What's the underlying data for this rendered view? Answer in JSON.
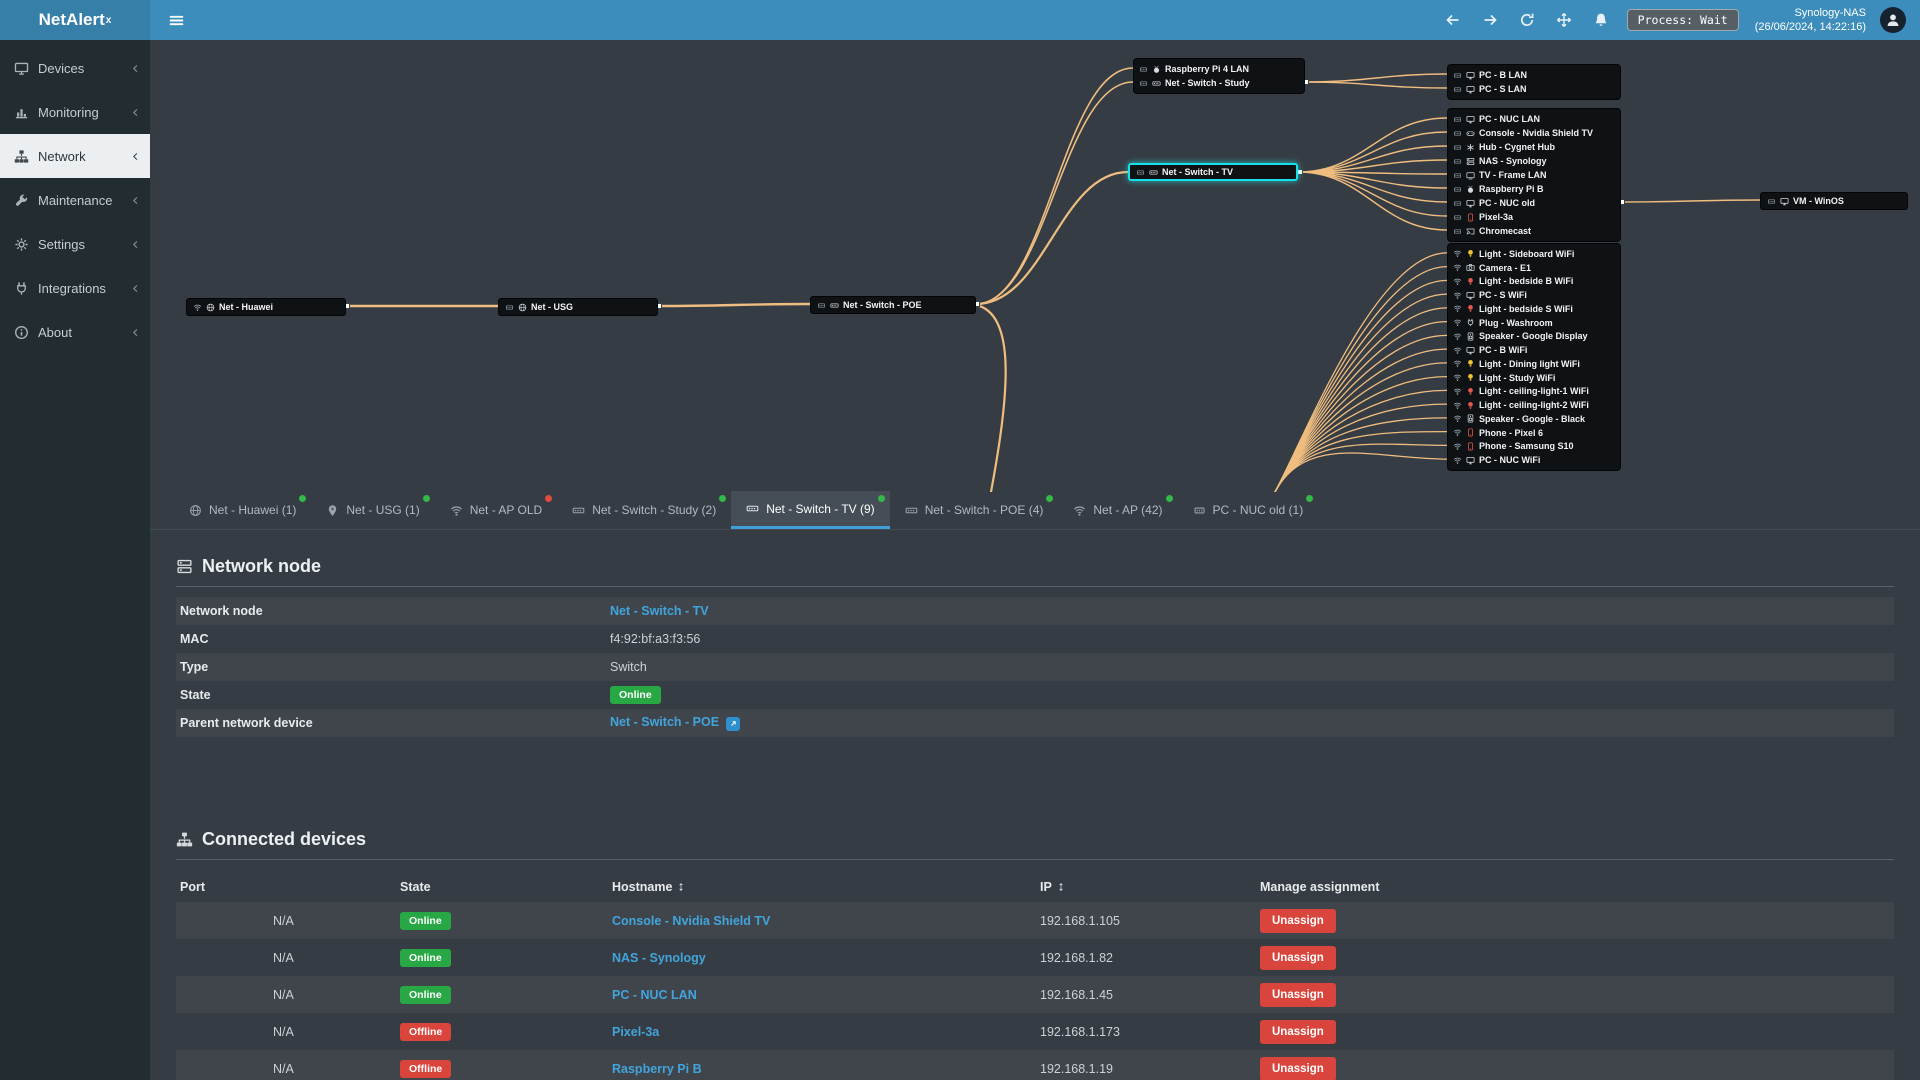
{
  "app": {
    "brand": "NetAlert",
    "brand_sup": "x"
  },
  "header": {
    "process_badge": "Process: Wait",
    "host_name": "Synology-NAS",
    "host_time": "(26/06/2024, 14:22:16)",
    "nav_icons": [
      "arrow-left",
      "arrow-right",
      "refresh",
      "move",
      "bell"
    ]
  },
  "sidebar": {
    "items": [
      {
        "label": "Devices",
        "icon": "monitor",
        "active": false
      },
      {
        "label": "Monitoring",
        "icon": "chart",
        "active": false
      },
      {
        "label": "Network",
        "icon": "sitemap",
        "active": true
      },
      {
        "label": "Maintenance",
        "icon": "wrench",
        "active": false
      },
      {
        "label": "Settings",
        "icon": "gear",
        "active": false
      },
      {
        "label": "Integrations",
        "icon": "plug",
        "active": false
      },
      {
        "label": "About",
        "icon": "info",
        "active": false
      }
    ]
  },
  "tree": {
    "nodes": [
      {
        "id": "huawei",
        "label": "Net - Huawei",
        "conn": "wifi",
        "icon": "globe",
        "selected": false
      },
      {
        "id": "usg",
        "label": "Net - USG",
        "conn": "eth",
        "icon": "globe",
        "selected": false
      },
      {
        "id": "poe",
        "label": "Net - Switch - POE",
        "conn": "eth",
        "icon": "switch",
        "selected": false
      },
      {
        "id": "tv",
        "label": "Net - Switch - TV",
        "conn": "eth",
        "icon": "switch",
        "selected": true
      },
      {
        "id": "vm",
        "label": "VM - WinOS",
        "conn": "eth",
        "icon": "monitor",
        "selected": false
      }
    ],
    "groups": [
      {
        "id": "study",
        "rows": [
          {
            "label": "Raspberry Pi 4 LAN",
            "conn": "eth",
            "icon": "berry"
          },
          {
            "label": "Net - Switch - Study",
            "conn": "eth",
            "icon": "switch"
          }
        ]
      },
      {
        "id": "grp1",
        "rows": [
          {
            "label": "PC - B LAN",
            "conn": "eth",
            "icon": "monitor"
          },
          {
            "label": "PC - S LAN",
            "conn": "eth",
            "icon": "monitor"
          }
        ]
      },
      {
        "id": "grp2",
        "rows": [
          {
            "label": "PC - NUC LAN",
            "conn": "eth",
            "icon": "monitor"
          },
          {
            "label": "Console - Nvidia Shield TV",
            "conn": "eth",
            "icon": "gamepad"
          },
          {
            "label": "Hub - Cygnet Hub",
            "conn": "eth",
            "icon": "hub"
          },
          {
            "label": "NAS - Synology",
            "conn": "eth",
            "icon": "server"
          },
          {
            "label": "TV - Frame LAN",
            "conn": "eth",
            "icon": "tv"
          },
          {
            "label": "Raspberry Pi B",
            "conn": "eth",
            "icon": "berry"
          },
          {
            "label": "PC - NUC old",
            "conn": "eth",
            "icon": "monitor"
          },
          {
            "label": "Pixel-3a",
            "conn": "eth",
            "icon": "phone",
            "color": "red"
          },
          {
            "label": "Chromecast",
            "conn": "eth",
            "icon": "cast"
          }
        ]
      },
      {
        "id": "grp3",
        "rows": [
          {
            "label": "Light - Sideboard WiFi",
            "conn": "wifi",
            "icon": "bulb",
            "color": "yellow"
          },
          {
            "label": "Camera - E1",
            "conn": "wifi",
            "icon": "camera"
          },
          {
            "label": "Light - bedside B WiFi",
            "conn": "wifi",
            "icon": "bulb",
            "color": "red"
          },
          {
            "label": "PC - S WiFi",
            "conn": "wifi",
            "icon": "monitor"
          },
          {
            "label": "Light - bedside S WiFi",
            "conn": "wifi",
            "icon": "bulb",
            "color": "red"
          },
          {
            "label": "Plug - Washroom",
            "conn": "wifi",
            "icon": "plug"
          },
          {
            "label": "Speaker - Google Display",
            "conn": "wifi",
            "icon": "speaker"
          },
          {
            "label": "PC - B WiFi",
            "conn": "wifi",
            "icon": "monitor"
          },
          {
            "label": "Light - Dining light WiFi",
            "conn": "wifi",
            "icon": "bulb",
            "color": "yellow"
          },
          {
            "label": "Light - Study WiFi",
            "conn": "wifi",
            "icon": "bulb",
            "color": "yellow"
          },
          {
            "label": "Light - ceiling-light-1 WiFi",
            "conn": "wifi",
            "icon": "bulb",
            "color": "red"
          },
          {
            "label": "Light - ceiling-light-2 WiFi",
            "conn": "wifi",
            "icon": "bulb",
            "color": "red"
          },
          {
            "label": "Speaker - Google - Black",
            "conn": "wifi",
            "icon": "speaker"
          },
          {
            "label": "Phone - Pixel 6",
            "conn": "wifi",
            "icon": "phone",
            "color": "red"
          },
          {
            "label": "Phone - Samsung S10",
            "conn": "wifi",
            "icon": "phone",
            "color": "red"
          },
          {
            "label": "PC - NUC WiFi",
            "conn": "wifi",
            "icon": "monitor"
          }
        ]
      }
    ]
  },
  "tabs": [
    {
      "label": "Net - Huawei (1)",
      "icon": "globe",
      "status": "online",
      "active": false
    },
    {
      "label": "Net - USG (1)",
      "icon": "pin",
      "status": "online",
      "active": false
    },
    {
      "label": "Net - AP OLD",
      "icon": "wifi",
      "status": "offline",
      "active": false
    },
    {
      "label": "Net - Switch - Study (2)",
      "icon": "switch",
      "status": "online",
      "active": false
    },
    {
      "label": "Net - Switch - TV (9)",
      "icon": "switch",
      "status": "online",
      "active": true
    },
    {
      "label": "Net - Switch - POE (4)",
      "icon": "switch",
      "status": "online",
      "active": false
    },
    {
      "label": "Net - AP (42)",
      "icon": "wifi",
      "status": "online",
      "active": false
    },
    {
      "label": "PC - NUC old (1)",
      "icon": "eth",
      "status": "online",
      "active": false
    }
  ],
  "network_node": {
    "section_title": "Network node",
    "rows": [
      {
        "label": "Network node",
        "value": "Net - Switch - TV",
        "type": "link"
      },
      {
        "label": "MAC",
        "value": "f4:92:bf:a3:f3:56",
        "type": "text"
      },
      {
        "label": "Type",
        "value": "Switch",
        "type": "text"
      },
      {
        "label": "State",
        "value": "Online",
        "type": "badge"
      },
      {
        "label": "Parent network device",
        "value": "Net - Switch - POE",
        "type": "link-ext"
      }
    ]
  },
  "connected_devices": {
    "section_title": "Connected devices",
    "columns": [
      "Port",
      "State",
      "Hostname",
      "IP",
      "Manage assignment"
    ],
    "unassign_label": "Unassign",
    "rows": [
      {
        "port": "N/A",
        "state": "Online",
        "hostname": "Console - Nvidia Shield TV",
        "ip": "192.168.1.105"
      },
      {
        "port": "N/A",
        "state": "Online",
        "hostname": "NAS - Synology",
        "ip": "192.168.1.82"
      },
      {
        "port": "N/A",
        "state": "Online",
        "hostname": "PC - NUC LAN",
        "ip": "192.168.1.45"
      },
      {
        "port": "N/A",
        "state": "Offline",
        "hostname": "Pixel-3a",
        "ip": "192.168.1.173"
      },
      {
        "port": "N/A",
        "state": "Offline",
        "hostname": "Raspberry Pi B",
        "ip": "192.168.1.19"
      }
    ]
  },
  "colors": {
    "navbar": "#3c8dbc",
    "logo_bg": "#367fa9",
    "sidebar_bg": "#222d32",
    "wire": "#efbd7f",
    "selection": "#19dfe8",
    "link": "#41a5dc",
    "online": "#28a745",
    "offline": "#d9443b",
    "tab_accent": "#3f9fd9"
  }
}
